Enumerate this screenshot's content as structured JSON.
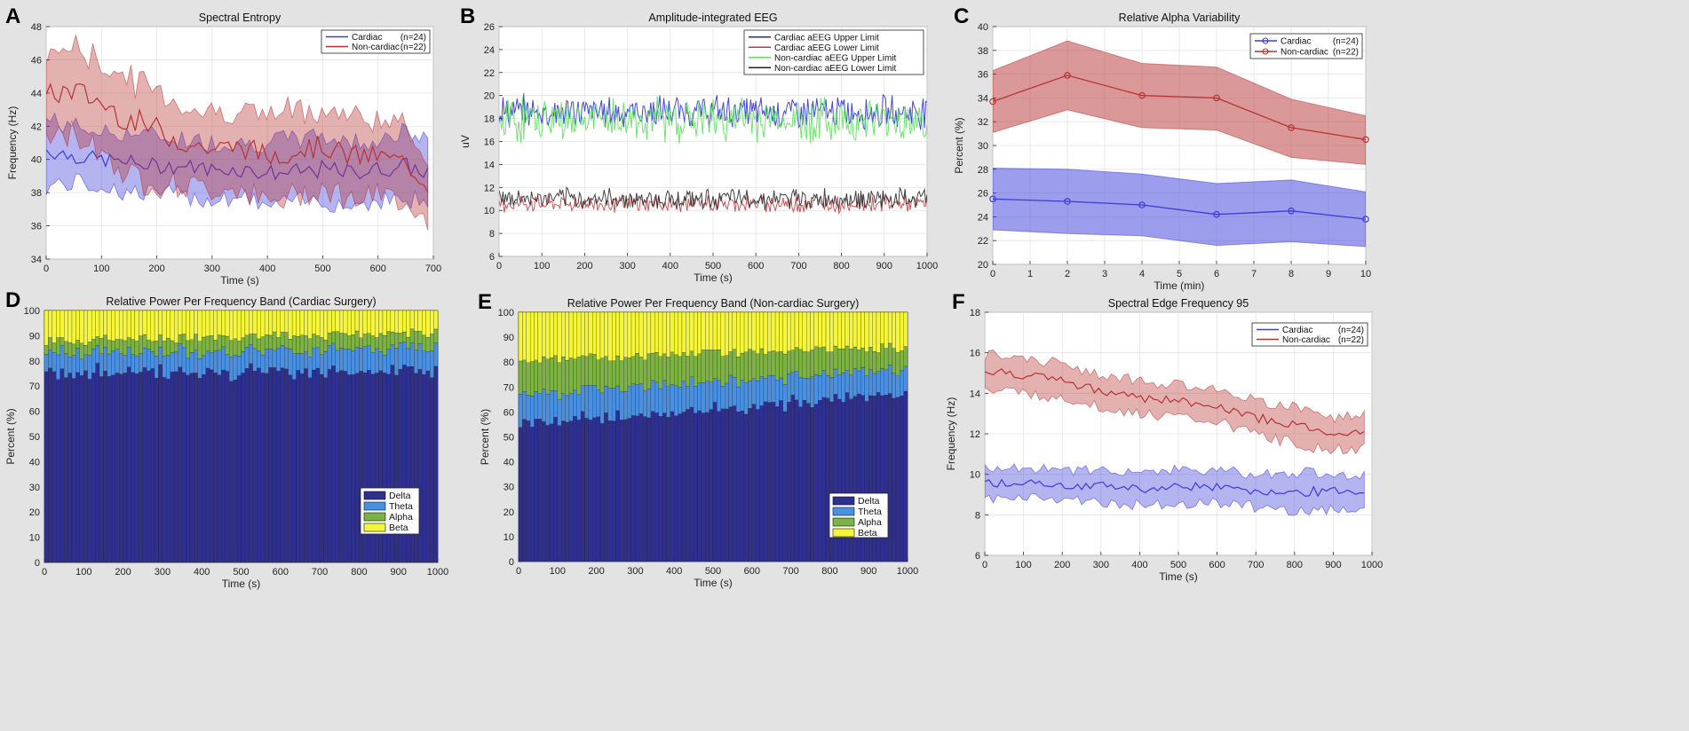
{
  "chart_data": [
    {
      "panel": "A",
      "type": "area",
      "title": "Spectral Entropy",
      "xlabel": "Time (s)",
      "ylabel": "Frequency (Hz)",
      "xlim": [
        0,
        700
      ],
      "ylim": [
        34,
        48
      ],
      "xticks": [
        "0",
        "100",
        "200",
        "300",
        "400",
        "500",
        "600",
        "700"
      ],
      "yticks": [
        "34",
        "36",
        "38",
        "40",
        "42",
        "44",
        "46",
        "48"
      ],
      "grid": true,
      "legend_position": "top-right",
      "series": [
        {
          "name": "Cardiac",
          "n_label": "(n=24)",
          "color": "#3b3bdb",
          "x": [
            0,
            50,
            100,
            150,
            200,
            250,
            300,
            350,
            400,
            450,
            500,
            550,
            600,
            650,
            690
          ],
          "mean": [
            40.6,
            40.2,
            40.0,
            39.8,
            39.6,
            39.6,
            39.4,
            39.4,
            39.2,
            39.2,
            39.4,
            39.2,
            39.4,
            39.6,
            39.2
          ],
          "lower": [
            38.4,
            38.6,
            38.4,
            38.0,
            38.0,
            37.8,
            37.6,
            37.8,
            37.2,
            37.4,
            37.6,
            37.2,
            37.6,
            37.6,
            37.4
          ],
          "upper": [
            42.4,
            42.0,
            41.6,
            41.6,
            41.4,
            41.2,
            41.0,
            41.0,
            41.0,
            41.2,
            41.4,
            41.0,
            41.2,
            41.6,
            41.0
          ]
        },
        {
          "name": "Non-cardiac",
          "n_label": "(n=22)",
          "color": "#b83232",
          "x": [
            0,
            50,
            100,
            150,
            200,
            250,
            300,
            350,
            400,
            450,
            500,
            550,
            600,
            650,
            690
          ],
          "mean": [
            43.8,
            44.2,
            43.4,
            42.4,
            41.8,
            41.0,
            40.6,
            40.8,
            40.2,
            40.6,
            40.8,
            40.2,
            40.2,
            39.8,
            38.4
          ],
          "lower": [
            41.2,
            41.6,
            40.6,
            39.0,
            38.6,
            38.4,
            38.2,
            38.4,
            37.2,
            37.8,
            38.4,
            37.6,
            37.8,
            37.6,
            36.2
          ],
          "upper": [
            46.4,
            46.8,
            45.8,
            44.8,
            44.2,
            43.2,
            42.8,
            43.0,
            42.6,
            43.0,
            43.0,
            42.6,
            42.4,
            42.0,
            40.2
          ]
        }
      ]
    },
    {
      "panel": "B",
      "type": "line",
      "title": "Amplitude-integrated EEG",
      "xlabel": "Time (s)",
      "ylabel": "uV",
      "xlim": [
        0,
        1000
      ],
      "ylim": [
        6,
        26
      ],
      "xticks": [
        "0",
        "100",
        "200",
        "300",
        "400",
        "500",
        "600",
        "700",
        "800",
        "900",
        "1000"
      ],
      "yticks": [
        "6",
        "8",
        "10",
        "12",
        "14",
        "16",
        "18",
        "20",
        "22",
        "24",
        "26"
      ],
      "grid": true,
      "legend_position": "top-right",
      "series": [
        {
          "name": "Cardiac aEEG Upper Limit",
          "color": "#2222dd",
          "center": 18.6,
          "spread": 1.1
        },
        {
          "name": "Cardiac aEEG Lower Limit",
          "color": "#c23a3a",
          "center": 10.6,
          "spread": 0.6
        },
        {
          "name": "Non-cardiac aEEG Upper Limit",
          "color": "#55e055",
          "center": 17.9,
          "spread": 1.5
        },
        {
          "name": "Non-cardiac aEEG Lower Limit",
          "color": "#222222",
          "center": 11.0,
          "spread": 0.7
        }
      ]
    },
    {
      "panel": "C",
      "type": "line",
      "title": "Relative Alpha Variability",
      "xlabel": "Time (min)",
      "ylabel": "Percent (%)",
      "xlim": [
        0,
        10
      ],
      "ylim": [
        20,
        40
      ],
      "xticks": [
        "0",
        "1",
        "2",
        "3",
        "4",
        "5",
        "6",
        "7",
        "8",
        "9",
        "10"
      ],
      "yticks": [
        "20",
        "22",
        "24",
        "26",
        "28",
        "30",
        "32",
        "34",
        "36",
        "38",
        "40"
      ],
      "grid": true,
      "legend_position": "top-right",
      "series": [
        {
          "name": "Cardiac",
          "n_label": "(n=24)",
          "color": "#3b3bdb",
          "x": [
            0,
            2,
            4,
            6,
            8,
            10
          ],
          "mean": [
            25.5,
            25.3,
            25.0,
            24.2,
            24.5,
            23.8
          ],
          "lower": [
            22.9,
            22.6,
            22.4,
            21.6,
            21.9,
            21.5
          ],
          "upper": [
            28.1,
            28.0,
            27.6,
            26.8,
            27.1,
            26.1
          ]
        },
        {
          "name": "Non-cardiac",
          "n_label": "(n=22)",
          "color": "#b83232",
          "x": [
            0,
            2,
            4,
            6,
            8,
            10
          ],
          "mean": [
            33.7,
            35.9,
            34.2,
            34.0,
            31.5,
            30.5
          ],
          "lower": [
            31.1,
            33.0,
            31.5,
            31.3,
            29.0,
            28.4
          ],
          "upper": [
            36.3,
            38.8,
            36.9,
            36.6,
            33.9,
            32.5
          ]
        }
      ]
    },
    {
      "panel": "D",
      "type": "bar",
      "stacked": true,
      "title": "Relative Power Per Frequency Band (Cardiac Surgery)",
      "xlabel": "Time (s)",
      "ylabel": "Percent (%)",
      "xlim": [
        0,
        1000
      ],
      "ylim": [
        0,
        100
      ],
      "xticks": [
        "0",
        "100",
        "200",
        "300",
        "400",
        "500",
        "600",
        "700",
        "800",
        "900",
        "1000"
      ],
      "yticks": [
        "0",
        "10",
        "20",
        "30",
        "40",
        "50",
        "60",
        "70",
        "80",
        "90",
        "100"
      ],
      "legend_position": "bottom-right",
      "bands": [
        {
          "name": "Delta",
          "color": "#2f2f8f"
        },
        {
          "name": "Theta",
          "color": "#4a90e2"
        },
        {
          "name": "Alpha",
          "color": "#7cb342"
        },
        {
          "name": "Beta",
          "color": "#f5f53a"
        }
      ],
      "band_start": {
        "Delta": 75,
        "Theta": 8,
        "Alpha": 5,
        "Beta": 12
      },
      "band_end": {
        "Delta": 76,
        "Theta": 9,
        "Alpha": 6,
        "Beta": 9
      }
    },
    {
      "panel": "E",
      "type": "bar",
      "stacked": true,
      "title": "Relative Power Per Frequency Band (Non-cardiac Surgery)",
      "xlabel": "Time (s)",
      "ylabel": "Percent (%)",
      "xlim": [
        0,
        1000
      ],
      "ylim": [
        0,
        100
      ],
      "xticks": [
        "0",
        "100",
        "200",
        "300",
        "400",
        "500",
        "600",
        "700",
        "800",
        "900",
        "1000"
      ],
      "yticks": [
        "0",
        "10",
        "20",
        "30",
        "40",
        "50",
        "60",
        "70",
        "80",
        "90",
        "100"
      ],
      "legend_position": "bottom-right",
      "bands": [
        {
          "name": "Delta",
          "color": "#2f2f8f"
        },
        {
          "name": "Theta",
          "color": "#4a90e2"
        },
        {
          "name": "Alpha",
          "color": "#7cb342"
        },
        {
          "name": "Beta",
          "color": "#f5f53a"
        }
      ],
      "band_start": {
        "Delta": 55,
        "Theta": 12,
        "Alpha": 14,
        "Beta": 19
      },
      "band_end": {
        "Delta": 67,
        "Theta": 10,
        "Alpha": 9,
        "Beta": 14
      }
    },
    {
      "panel": "F",
      "type": "area",
      "title": "Spectral Edge Frequency 95",
      "xlabel": "Time (s)",
      "ylabel": "Frequency (Hz)",
      "xlim": [
        0,
        1000
      ],
      "ylim": [
        6,
        18
      ],
      "xticks": [
        "0",
        "100",
        "200",
        "300",
        "400",
        "500",
        "600",
        "700",
        "800",
        "900",
        "1000"
      ],
      "yticks": [
        "6",
        "8",
        "10",
        "12",
        "14",
        "16",
        "18"
      ],
      "grid": true,
      "legend_position": "top-right",
      "series": [
        {
          "name": "Cardiac",
          "n_label": "(n=24)",
          "color": "#3b3bdb",
          "x": [
            0,
            100,
            200,
            300,
            400,
            500,
            600,
            700,
            800,
            900,
            980
          ],
          "mean": [
            9.5,
            9.6,
            9.5,
            9.4,
            9.3,
            9.4,
            9.4,
            9.2,
            9.1,
            9.2,
            9.1
          ],
          "lower": [
            8.7,
            8.9,
            8.8,
            8.6,
            8.5,
            8.6,
            8.6,
            8.4,
            8.2,
            8.3,
            8.3
          ],
          "upper": [
            10.3,
            10.3,
            10.2,
            10.2,
            10.1,
            10.2,
            10.2,
            10.0,
            10.0,
            10.1,
            9.9
          ]
        },
        {
          "name": "Non-cardiac",
          "n_label": "(n=22)",
          "color": "#b83232",
          "x": [
            0,
            100,
            200,
            300,
            400,
            500,
            600,
            700,
            800,
            900,
            980
          ],
          "mean": [
            15.0,
            14.9,
            14.6,
            14.1,
            13.8,
            13.6,
            13.4,
            12.8,
            12.4,
            12.0,
            12.1
          ],
          "lower": [
            14.1,
            14.0,
            13.8,
            13.3,
            13.0,
            12.8,
            12.6,
            12.0,
            11.5,
            11.2,
            11.3
          ],
          "upper": [
            15.9,
            15.8,
            15.4,
            14.9,
            14.6,
            14.4,
            14.2,
            13.6,
            13.3,
            12.8,
            12.9
          ]
        }
      ]
    }
  ],
  "panel_letters": [
    "A",
    "B",
    "C",
    "D",
    "E",
    "F"
  ]
}
